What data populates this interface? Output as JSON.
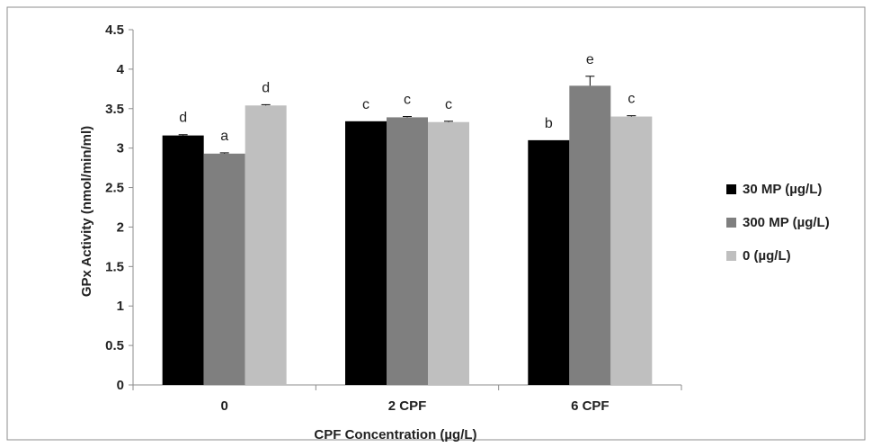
{
  "chart_data": {
    "type": "bar",
    "title": "",
    "xlabel": "CPF Concentration (µg/L)",
    "ylabel": "GPx Activity (nmol/min/ml)",
    "ylim": [
      0,
      4.5
    ],
    "yticks": [
      "0",
      "0.5",
      "1",
      "1.5",
      "2",
      "2.5",
      "3",
      "3.5",
      "4",
      "4.5"
    ],
    "categories": [
      "0",
      "2 CPF",
      "6 CPF"
    ],
    "legend_position": "right",
    "grid": false,
    "series": [
      {
        "name": "30 MP (µg/L)",
        "color": "#000000",
        "values": [
          3.16,
          3.34,
          3.1
        ],
        "errors": [
          0.01,
          0.0,
          0.0
        ],
        "letters": [
          "d",
          "c",
          "b"
        ]
      },
      {
        "name": "300 MP (µg/L)",
        "color": "#7f7f7f",
        "values": [
          2.93,
          3.39,
          3.79
        ],
        "errors": [
          0.01,
          0.01,
          0.12
        ],
        "letters": [
          "a",
          "c",
          "e"
        ]
      },
      {
        "name": "0 (µg/L)",
        "color": "#bfbfbf",
        "values": [
          3.54,
          3.33,
          3.4
        ],
        "errors": [
          0.01,
          0.01,
          0.01
        ],
        "letters": [
          "d",
          "c",
          "c"
        ]
      }
    ]
  }
}
